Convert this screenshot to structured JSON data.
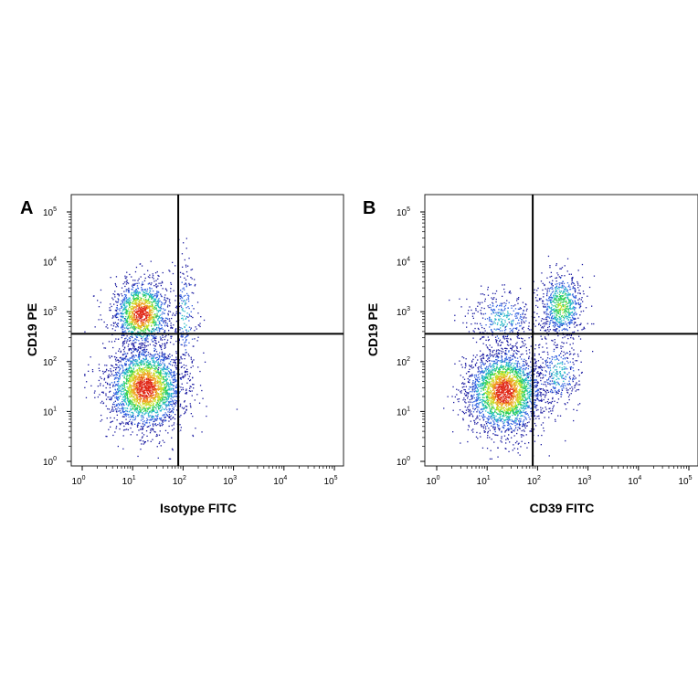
{
  "chart_data": [
    {
      "type": "scatter",
      "panel_label": "A",
      "xlabel": "Isotype FITC",
      "ylabel": "CD19 PE",
      "x_scale": "log",
      "y_scale": "log",
      "xlim": [
        1,
        100000
      ],
      "ylim": [
        1,
        100000
      ],
      "tick_labels": [
        "10",
        "10",
        "10",
        "10",
        "10",
        "10"
      ],
      "tick_exponents": [
        "0",
        "1",
        "2",
        "3",
        "4",
        "5"
      ],
      "tick_values": [
        1,
        10,
        100,
        1000,
        10000,
        100000
      ],
      "quadrant_gate": {
        "x": 80,
        "y": 360
      },
      "color_scale": [
        "#1a1aa0",
        "#2f5fe0",
        "#23b8c8",
        "#2fd05a",
        "#c8e028",
        "#f0a020",
        "#e02818"
      ],
      "populations": [
        {
          "name": "",
          "x": [
            2,
            80
          ],
          "y": [
            5,
            300
          ],
          "share": 0.62,
          "density_center": [
            18,
            30
          ]
        },
        {
          "name": "",
          "x": [
            4,
            60
          ],
          "y": [
            300,
            8000
          ],
          "share": 0.33,
          "density_center": [
            15,
            900
          ]
        },
        {
          "name": "",
          "x": [
            80,
            250
          ],
          "y": [
            100,
            30000
          ],
          "share": 0.05,
          "density_center": [
            110,
            800
          ]
        }
      ]
    },
    {
      "type": "scatter",
      "panel_label": "B",
      "xlabel": "CD39 FITC",
      "ylabel": "CD19 PE",
      "x_scale": "log",
      "y_scale": "log",
      "xlim": [
        1,
        100000
      ],
      "ylim": [
        1,
        100000
      ],
      "tick_labels": [
        "10",
        "10",
        "10",
        "10",
        "10",
        "10"
      ],
      "tick_exponents": [
        "0",
        "1",
        "2",
        "3",
        "4",
        "5"
      ],
      "tick_values": [
        1,
        10,
        100,
        1000,
        10000,
        100000
      ],
      "quadrant_gate": {
        "x": 80,
        "y": 360
      },
      "color_scale": [
        "#1a1aa0",
        "#2f5fe0",
        "#23b8c8",
        "#2fd05a",
        "#c8e028",
        "#f0a020",
        "#e02818"
      ],
      "populations": [
        {
          "name": "",
          "x": [
            2,
            80
          ],
          "y": [
            5,
            300
          ],
          "share": 0.66,
          "density_center": [
            22,
            25
          ]
        },
        {
          "name": "",
          "x": [
            100,
            800
          ],
          "y": [
            300,
            8000
          ],
          "share": 0.17,
          "density_center": [
            300,
            1300
          ]
        },
        {
          "name": "",
          "x": [
            3,
            80
          ],
          "y": [
            300,
            5000
          ],
          "share": 0.09,
          "density_center": [
            20,
            700
          ]
        },
        {
          "name": "",
          "x": [
            100,
            1000
          ],
          "y": [
            8,
            300
          ],
          "share": 0.08,
          "density_center": [
            250,
            60
          ]
        }
      ]
    }
  ]
}
